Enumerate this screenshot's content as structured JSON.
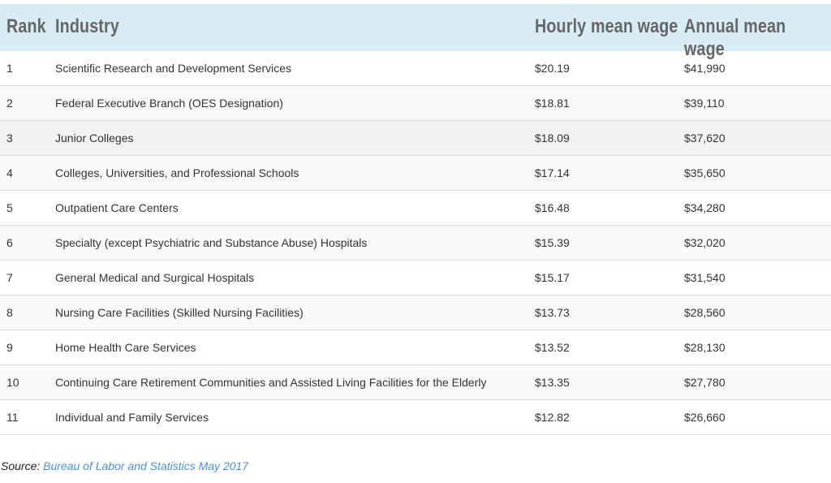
{
  "table": {
    "headers": [
      "Rank",
      "Industry",
      "Hourly mean wage",
      "Annual mean wage"
    ],
    "rows": [
      [
        "1",
        "Scientific Research and Development Services",
        "$20.19",
        "$41,990"
      ],
      [
        "2",
        "Federal Executive Branch (OES Designation)",
        "$18.81",
        "$39,110"
      ],
      [
        "3",
        "Junior Colleges",
        "$18.09",
        "$37,620"
      ],
      [
        "4",
        "Colleges, Universities, and Professional Schools",
        "$17.14",
        "$35,650"
      ],
      [
        "5",
        "Outpatient Care Centers",
        "$16.48",
        "$34,280"
      ],
      [
        "6",
        "Specialty (except Psychiatric and Substance Abuse) Hospitals",
        "$15.39",
        "$32,020"
      ],
      [
        "7",
        "General Medical and Surgical Hospitals",
        "$15.17",
        "$31,540"
      ],
      [
        "8",
        "Nursing Care Facilities (Skilled Nursing Facilities)",
        "$13.73",
        "$28,560"
      ],
      [
        "9",
        "Home Health Care Services",
        "$13.52",
        "$28,130"
      ],
      [
        "10",
        "Continuing Care Retirement Communities and Assisted Living Facilities for the Elderly",
        "$13.35",
        "$27,780"
      ],
      [
        "11",
        "Individual and Family Services",
        "$12.82",
        "$26,660"
      ]
    ]
  },
  "source": {
    "label": "Source:",
    "link_text": "Bureau of Labor and Statistics May 2017"
  },
  "colors": {
    "header_bg": "#d9ebf5",
    "link": "#4a90d9"
  }
}
